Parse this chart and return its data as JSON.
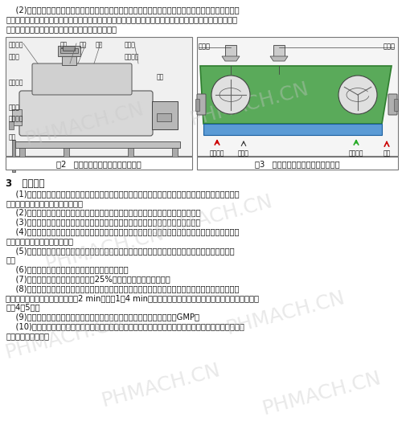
{
  "bg_color": "#ffffff",
  "watermark_text": "PHMACH.CN",
  "watermark_color": "#c8c8c8",
  "watermark_alpha": 0.4,
  "paragraph_top": [
    "    (2)这些团粒结构的软材料经过切割刀部位时，在高速旋转的切割刀的切割、粉碎，软材在半流动状态下",
    "被切割成细小而均匀的颗粒，实现了物料的互相转变。所以，这些软材不是通过强制挤压而成粒的。然后，开",
    "启出料门，湿颗粒在桨叶离心力作用下推动出料斗。"
  ],
  "section_header": "3   功能特点",
  "section_body": [
    "    (1)高效湿法混合制粒机结构上采用倒锥形制粒一体锅技术及特殊形状的搅拌浆和切割刀，使物料翻滚均",
    "匀，保证了制粒成品更均匀、可靠。",
    "    (2)槽底为夹层，内置水冷循环系统，恒温性能比一般气冷系统好，提高了颗粒质量。",
    "    (3)搅拌桨与切割刀均采用变频调速，易于控制颗粒大小，以满足药品工艺的多样性。",
    "    (4)使用压缩空气密封驱动轴，消除了粉尘粘结现象；清洗时可切换成纯化水，可自动清洗；带桨叶升降",
    "系统，有利于桨叶和锅体清洗。",
    "    (5)锅盖自动提升，出料口与干燥设备相匹配，大机型自带扶梯，便于操作，出料口为圆弧型，杜绝死",
    "角。",
    "    (6)原理上制粒流态化，成粒近似球形，流动性好。",
    "    (7)较传统工艺粘合剂用量减少高达25%，所以干燥时间得以缩短。",
    "    (8)控制上采用可编程控制，可自动运行，也可手动控制，便于摸索工艺参数和流程；操作简便，按工艺",
    "安排调整好时间控制器，每次干混2 min，造粒1～4 min，一个周期即可完成混合制粒工序，功效比传统工艺",
    "提高4～5倍。",
    "    (9)由于在同一封闭容器内完成干混、湿混、制粒，工艺过程缩减，也符合GMP。",
    "    (10)安全上整个操作具有严格的安全保护措施，在密闭的容器中操作，装有安全互锁装置，当打开容器盖",
    "时电源则自动切断。"
  ],
  "fig2_caption": "图2   高效湿法混合制粒机结构示意图",
  "fig3_caption": "图3   高效湿法混合制粒机工作原理图",
  "fig2_labels": [
    [
      8,
      50,
      "锅盖部分"
    ],
    [
      75,
      50,
      "加液"
    ],
    [
      100,
      50,
      "刮粉"
    ],
    [
      122,
      50,
      "排气"
    ],
    [
      155,
      50,
      "切割刀"
    ],
    [
      8,
      64,
      "夹层锅"
    ],
    [
      152,
      64,
      "切割传动"
    ],
    [
      8,
      95,
      "出料部分"
    ],
    [
      192,
      84,
      "机座"
    ],
    [
      8,
      118,
      "搅拌架"
    ],
    [
      8,
      131,
      "搅拌传动"
    ],
    [
      8,
      155,
      "机棒"
    ]
  ],
  "fig3_top_labels": [
    [
      285,
      48,
      "加料口"
    ],
    [
      440,
      48,
      "粘合剂"
    ]
  ],
  "fig3_bottom_labels": [
    [
      295,
      218,
      "喷射气体"
    ],
    [
      340,
      218,
      "喷射液"
    ],
    [
      390,
      218,
      "冷却介质"
    ],
    [
      448,
      218,
      "出料"
    ]
  ],
  "font_size_body": 7.2,
  "font_size_header": 8.5,
  "font_size_caption": 7.2,
  "font_size_label": 5.5
}
